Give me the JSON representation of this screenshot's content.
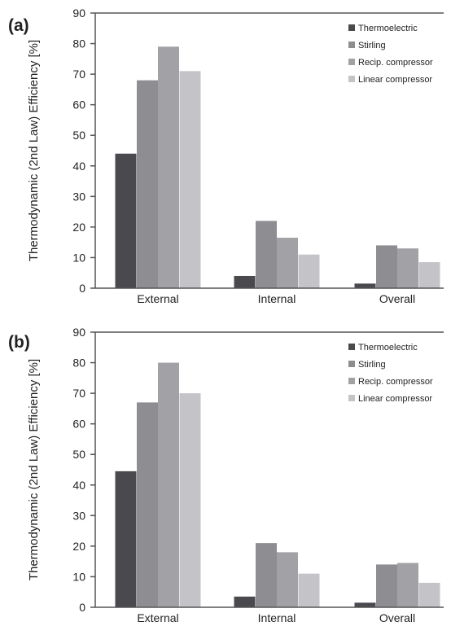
{
  "chart_data": [
    {
      "panel": "(a)",
      "type": "bar",
      "ylabel": "Thermodynamic (2nd Law) Efficiency [%]",
      "ylim": [
        0,
        90
      ],
      "yticks": [
        "0",
        "10",
        "20",
        "30",
        "40",
        "50",
        "60",
        "70",
        "80",
        "90"
      ],
      "categories": [
        "External",
        "Internal",
        "Overall"
      ],
      "legend_position": "top-right",
      "grid": false,
      "series": [
        {
          "name": "Thermoelectric",
          "color": "#4a4a4e",
          "values": [
            44,
            4,
            1.5
          ]
        },
        {
          "name": "Stirling",
          "color": "#8e8e92",
          "values": [
            68,
            22,
            14
          ]
        },
        {
          "name": "Recip. compressor",
          "color": "#a2a2a6",
          "values": [
            79,
            16.5,
            13
          ]
        },
        {
          "name": "Linear compressor",
          "color": "#c4c4c8",
          "values": [
            71,
            11,
            8.5
          ]
        }
      ]
    },
    {
      "panel": "(b)",
      "type": "bar",
      "ylabel": "Thermodynamic (2nd Law) Efficiency [%]",
      "ylim": [
        0,
        90
      ],
      "yticks": [
        "0",
        "10",
        "20",
        "30",
        "40",
        "50",
        "60",
        "70",
        "80",
        "90"
      ],
      "categories": [
        "External",
        "Internal",
        "Overall"
      ],
      "legend_position": "top-right",
      "grid": false,
      "series": [
        {
          "name": "Thermoelectric",
          "color": "#4a4a4e",
          "values": [
            44.5,
            3.5,
            1.5
          ]
        },
        {
          "name": "Stirling",
          "color": "#8e8e92",
          "values": [
            67,
            21,
            14
          ]
        },
        {
          "name": "Recip. compressor",
          "color": "#a2a2a6",
          "values": [
            80,
            18,
            14.5
          ]
        },
        {
          "name": "Linear compressor",
          "color": "#c4c4c8",
          "values": [
            70,
            11,
            8
          ]
        }
      ]
    }
  ]
}
